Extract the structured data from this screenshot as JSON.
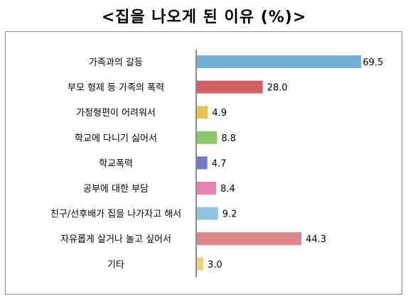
{
  "chart_data": {
    "type": "bar",
    "orientation": "horizontal",
    "title": "<집을 나오게 된 이유 (%)>",
    "categories": [
      "가족과의 갈등",
      "부모 형제 등 가족의 폭력",
      "가정형편이 어려워서",
      "학교에 다니기 싫어서",
      "학교폭력",
      "공부에 대한 부담",
      "친구/선후배가 집을 나가자고 해서",
      "자유롭게 살거나 놀고 싶어서",
      "기타"
    ],
    "values": [
      69.5,
      28.0,
      4.9,
      8.8,
      4.7,
      8.4,
      9.2,
      44.3,
      3.0
    ],
    "value_labels": [
      "69.5",
      "28.0",
      "4.9",
      "8.8",
      "4.7",
      "8.4",
      "9.2",
      "44.3",
      "3.0"
    ],
    "colors": [
      "#6fb0d5",
      "#d06063",
      "#e9c24e",
      "#8bc66a",
      "#7278c6",
      "#e583ae",
      "#8fc2dc",
      "#d98488",
      "#ecd27b"
    ],
    "xlim": [
      0,
      70
    ],
    "grid": false,
    "legend": "none"
  }
}
